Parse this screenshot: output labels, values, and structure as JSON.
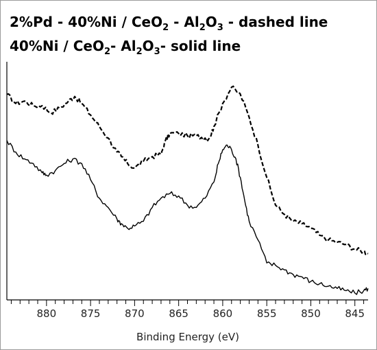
{
  "chart_data": {
    "type": "line",
    "title_line1": {
      "a": "2%Pd - 40%Ni / CeO",
      "b": " - Al",
      "c": "O",
      "d": " - dashed line"
    },
    "title_line2": {
      "a": "40%Ni / CeO",
      "b": "- Al",
      "c": "O",
      "d": "- solid line"
    },
    "xlabel": "Binding Energy (eV)",
    "ylabel": "",
    "x_reversed": true,
    "xlim": [
      884.5,
      843.5
    ],
    "ylim": [
      0,
      100
    ],
    "xticks": [
      880,
      875,
      870,
      865,
      860,
      855,
      850,
      845
    ],
    "series": [
      {
        "style": "dashed",
        "color": "#000000",
        "points": [
          [
            884.5,
            86
          ],
          [
            883.5,
            82
          ],
          [
            882.5,
            83
          ],
          [
            881.5,
            81
          ],
          [
            880.5,
            81
          ],
          [
            879.5,
            78
          ],
          [
            878.5,
            80
          ],
          [
            877.5,
            83
          ],
          [
            876.8,
            85
          ],
          [
            876.0,
            82
          ],
          [
            875.0,
            77
          ],
          [
            874.0,
            72
          ],
          [
            873.0,
            67
          ],
          [
            872.0,
            61
          ],
          [
            871.5,
            59
          ],
          [
            870.8,
            56
          ],
          [
            870.0,
            54
          ],
          [
            869.0,
            57
          ],
          [
            868.0,
            59
          ],
          [
            867.0,
            60
          ],
          [
            866.5,
            66
          ],
          [
            866.0,
            69
          ],
          [
            865.0,
            69
          ],
          [
            864.0,
            68
          ],
          [
            863.0,
            68
          ],
          [
            862.0,
            67
          ],
          [
            861.5,
            67
          ],
          [
            861.0,
            72
          ],
          [
            860.0,
            82
          ],
          [
            859.0,
            89
          ],
          [
            858.0,
            86
          ],
          [
            857.0,
            76
          ],
          [
            856.0,
            64
          ],
          [
            855.0,
            50
          ],
          [
            854.0,
            38
          ],
          [
            853.0,
            34
          ],
          [
            852.0,
            31
          ],
          [
            851.0,
            30
          ],
          [
            850.0,
            28
          ],
          [
            849.0,
            25
          ],
          [
            848.0,
            23
          ],
          [
            847.0,
            22
          ],
          [
            846.0,
            21
          ],
          [
            845.0,
            19
          ],
          [
            844.0,
            18
          ],
          [
            843.5,
            17
          ]
        ]
      },
      {
        "style": "solid",
        "color": "#000000",
        "points": [
          [
            884.5,
            66
          ],
          [
            883.5,
            61
          ],
          [
            882.5,
            58
          ],
          [
            881.5,
            56
          ],
          [
            880.5,
            52
          ],
          [
            880.0,
            51
          ],
          [
            879.0,
            53
          ],
          [
            878.0,
            56
          ],
          [
            877.0,
            58
          ],
          [
            876.0,
            56
          ],
          [
            875.0,
            49
          ],
          [
            874.0,
            41
          ],
          [
            873.0,
            37
          ],
          [
            872.0,
            32
          ],
          [
            871.5,
            30
          ],
          [
            870.8,
            28
          ],
          [
            870.0,
            29
          ],
          [
            869.0,
            31
          ],
          [
            868.0,
            37
          ],
          [
            867.0,
            41
          ],
          [
            866.0,
            43
          ],
          [
            865.0,
            42
          ],
          [
            864.0,
            38
          ],
          [
            863.0,
            37
          ],
          [
            862.0,
            41
          ],
          [
            861.0,
            48
          ],
          [
            860.5,
            56
          ],
          [
            860.0,
            62
          ],
          [
            859.5,
            64
          ],
          [
            859.0,
            62
          ],
          [
            858.5,
            58
          ],
          [
            858.0,
            50
          ],
          [
            857.5,
            40
          ],
          [
            857.0,
            31
          ],
          [
            856.0,
            23
          ],
          [
            855.0,
            13
          ],
          [
            854.0,
            12
          ],
          [
            853.0,
            10
          ],
          [
            852.0,
            8
          ],
          [
            851.0,
            7
          ],
          [
            850.0,
            5
          ],
          [
            849.0,
            4
          ],
          [
            848.0,
            3
          ],
          [
            847.0,
            2
          ],
          [
            846.0,
            1
          ],
          [
            845.0,
            0
          ],
          [
            844.0,
            1
          ],
          [
            843.5,
            2
          ]
        ]
      }
    ]
  }
}
